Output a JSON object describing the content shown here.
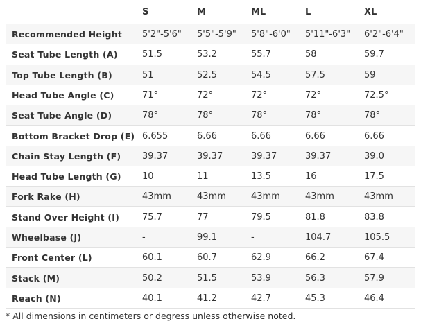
{
  "table": {
    "header": [
      "S",
      "M",
      "ML",
      "L",
      "XL"
    ],
    "rows": [
      [
        "Recommended Height",
        "5'2\"-5'6\"",
        "5'5\"-5'9\"",
        "5'8\"-6'0\"",
        "5'11\"-6'3\"",
        "6'2\"-6'4\""
      ],
      [
        "Seat Tube Length (A)",
        "51.5",
        "53.2",
        "55.7",
        "58",
        "59.7"
      ],
      [
        "Top Tube Length (B)",
        "51",
        "52.5",
        "54.5",
        "57.5",
        "59"
      ],
      [
        "Head Tube Angle (C)",
        "71°",
        "72°",
        "72°",
        "72°",
        "72.5°"
      ],
      [
        "Seat Tube Angle (D)",
        "78°",
        "78°",
        "78°",
        "78°",
        "78°"
      ],
      [
        "Bottom Bracket Drop (E)",
        "6.655",
        "6.66",
        "6.66",
        "6.66",
        "6.66"
      ],
      [
        "Chain Stay Length (F)",
        "39.37",
        "39.37",
        "39.37",
        "39.37",
        "39.0"
      ],
      [
        "Head Tube Length (G)",
        "10",
        "11",
        "13.5",
        "16",
        "17.5"
      ],
      [
        "Fork Rake (H)",
        "43mm",
        "43mm",
        "43mm",
        "43mm",
        "43mm"
      ],
      [
        "Stand Over Height (I)",
        "75.7",
        "77",
        "79.5",
        "81.8",
        "83.8"
      ],
      [
        "Wheelbase (J)",
        "-",
        "99.1",
        "-",
        "104.7",
        "105.5"
      ],
      [
        "Front Center (L)",
        "60.1",
        "60.7",
        "62.9",
        "66.2",
        "67.4"
      ],
      [
        "Stack (M)",
        "50.2",
        "51.5",
        "53.9",
        "56.3",
        "57.9"
      ],
      [
        "Reach (N)",
        "40.1",
        "41.2",
        "42.7",
        "45.3",
        "46.4"
      ]
    ]
  },
  "footnote": "* All dimensions in centimeters or degress unless otherwise noted."
}
